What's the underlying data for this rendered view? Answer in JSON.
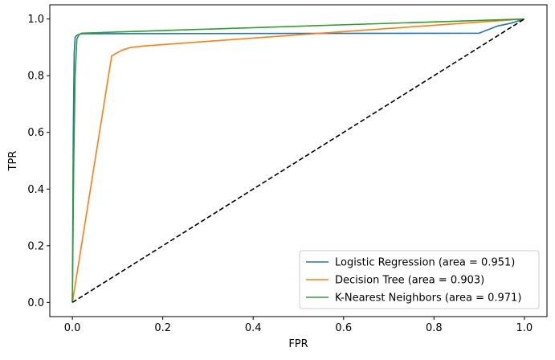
{
  "chart_data": {
    "type": "line",
    "title": "",
    "xlabel": "FPR",
    "ylabel": "TPR",
    "xlim": [
      -0.05,
      1.05
    ],
    "ylim": [
      -0.05,
      1.05
    ],
    "xticks": [
      0.0,
      0.2,
      0.4,
      0.6,
      0.8,
      1.0
    ],
    "yticks": [
      0.0,
      0.2,
      0.4,
      0.6,
      0.8,
      1.0
    ],
    "tick_labels_x": [
      "0.0",
      "0.2",
      "0.4",
      "0.6",
      "0.8",
      "1.0"
    ],
    "tick_labels_y": [
      "0.0",
      "0.2",
      "0.4",
      "0.6",
      "0.8",
      "1.0"
    ],
    "grid": false,
    "legend_position": "lower-right",
    "series": [
      {
        "name": "Logistic Regression (area = 0.951)",
        "color": "#1f77b4",
        "x": [
          0.0,
          0.002,
          0.004,
          0.006,
          0.01,
          0.02,
          0.9,
          0.94,
          0.97,
          1.0
        ],
        "y": [
          0.0,
          0.6,
          0.88,
          0.935,
          0.943,
          0.948,
          0.95,
          0.975,
          0.985,
          1.0
        ]
      },
      {
        "name": "Decision Tree (area = 0.903)",
        "color": "#ff7f0e",
        "x": [
          0.0,
          0.087,
          0.11,
          0.13,
          0.16,
          0.55,
          1.0
        ],
        "y": [
          0.0,
          0.87,
          0.89,
          0.9,
          0.905,
          0.95,
          1.0
        ]
      },
      {
        "name": "K-Nearest Neighbors (area = 0.971)",
        "color": "#2ca02c",
        "x": [
          0.0,
          0.003,
          0.006,
          0.01,
          0.015,
          0.02,
          1.0
        ],
        "y": [
          0.0,
          0.5,
          0.8,
          0.93,
          0.945,
          0.95,
          1.0
        ]
      }
    ],
    "reference_line": {
      "style": "dashed",
      "color": "#000000",
      "x": [
        0.0,
        1.0
      ],
      "y": [
        0.0,
        1.0
      ]
    }
  }
}
